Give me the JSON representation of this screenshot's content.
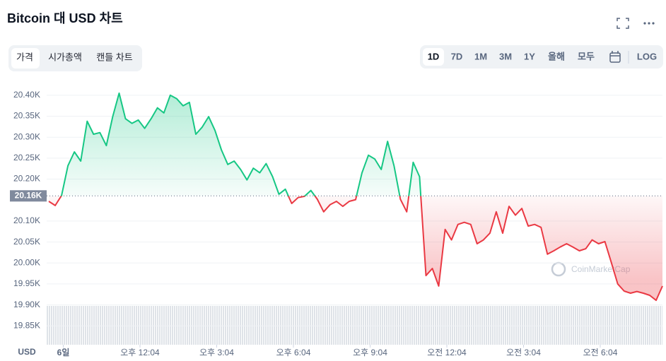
{
  "chart_data": {
    "type": "line",
    "title": "Bitcoin 대 USD 차트",
    "ylabel": "USD",
    "watermark": "CoinMarketCap",
    "up_color": "#16c784",
    "down_color": "#ea3943",
    "grid": true,
    "reference": {
      "value": 20160,
      "label": "20.16K"
    },
    "xlim": [
      505,
      1950
    ],
    "ylim": [
      19805,
      20425
    ],
    "xticks": [
      {
        "value": 544,
        "label": "6일"
      },
      {
        "value": 724,
        "label": "오후 12:04"
      },
      {
        "value": 904,
        "label": "오후 3:04"
      },
      {
        "value": 1084,
        "label": "오후 6:04"
      },
      {
        "value": 1264,
        "label": "오후 9:04"
      },
      {
        "value": 1444,
        "label": "오전 12:04"
      },
      {
        "value": 1624,
        "label": "오전 3:04"
      },
      {
        "value": 1804,
        "label": "오전 6:04"
      }
    ],
    "yticks": [
      {
        "value": 20400,
        "label": "20.40K"
      },
      {
        "value": 20350,
        "label": "20.35K"
      },
      {
        "value": 20300,
        "label": "20.30K"
      },
      {
        "value": 20250,
        "label": "20.25K"
      },
      {
        "value": 20200,
        "label": "20.20K"
      },
      {
        "value": 20100,
        "label": "20.10K"
      },
      {
        "value": 20050,
        "label": "20.05K"
      },
      {
        "value": 20000,
        "label": "20.00K"
      },
      {
        "value": 19950,
        "label": "19.95K"
      },
      {
        "value": 19900,
        "label": "19.90K"
      },
      {
        "value": 19850,
        "label": "19.85K"
      }
    ],
    "x": [
      510,
      525,
      540,
      555,
      570,
      585,
      600,
      615,
      630,
      645,
      660,
      675,
      690,
      705,
      720,
      735,
      750,
      765,
      780,
      795,
      810,
      825,
      840,
      855,
      870,
      885,
      900,
      915,
      930,
      945,
      960,
      975,
      990,
      1005,
      1020,
      1035,
      1050,
      1065,
      1080,
      1095,
      1110,
      1125,
      1140,
      1155,
      1170,
      1185,
      1200,
      1215,
      1230,
      1245,
      1260,
      1275,
      1290,
      1305,
      1320,
      1335,
      1350,
      1365,
      1380,
      1395,
      1410,
      1425,
      1440,
      1455,
      1470,
      1485,
      1500,
      1515,
      1530,
      1545,
      1560,
      1575,
      1590,
      1605,
      1620,
      1635,
      1650,
      1665,
      1680,
      1695,
      1710,
      1725,
      1740,
      1755,
      1770,
      1785,
      1800,
      1815,
      1830,
      1845,
      1860,
      1875,
      1890,
      1905,
      1920,
      1935,
      1950
    ],
    "values": [
      20147,
      20137,
      20161,
      20232,
      20265,
      20243,
      20338,
      20307,
      20311,
      20280,
      20349,
      20405,
      20344,
      20333,
      20341,
      20321,
      20344,
      20370,
      20358,
      20400,
      20392,
      20375,
      20383,
      20307,
      20324,
      20349,
      20316,
      20270,
      20235,
      20243,
      20223,
      20198,
      20226,
      20215,
      20237,
      20206,
      20164,
      20176,
      20142,
      20156,
      20159,
      20173,
      20152,
      20122,
      20139,
      20147,
      20135,
      20147,
      20151,
      20215,
      20257,
      20248,
      20223,
      20290,
      20232,
      20152,
      20122,
      20240,
      20206,
      19970,
      19987,
      19945,
      20080,
      20055,
      20092,
      20097,
      20092,
      20046,
      20055,
      20071,
      20122,
      20071,
      20135,
      20114,
      20130,
      20088,
      20092,
      20085,
      20021,
      20029,
      20038,
      20046,
      20038,
      20029,
      20034,
      20055,
      20046,
      20051,
      20001,
      19950,
      19933,
      19928,
      19932,
      19928,
      19923,
      19911,
      19945
    ]
  },
  "controls": {
    "tabs": [
      "가격",
      "시가총액",
      "캔들 차트"
    ],
    "ranges": [
      "1D",
      "7D",
      "1M",
      "3M",
      "1Y",
      "올해",
      "모두"
    ],
    "log_button": "LOG"
  }
}
